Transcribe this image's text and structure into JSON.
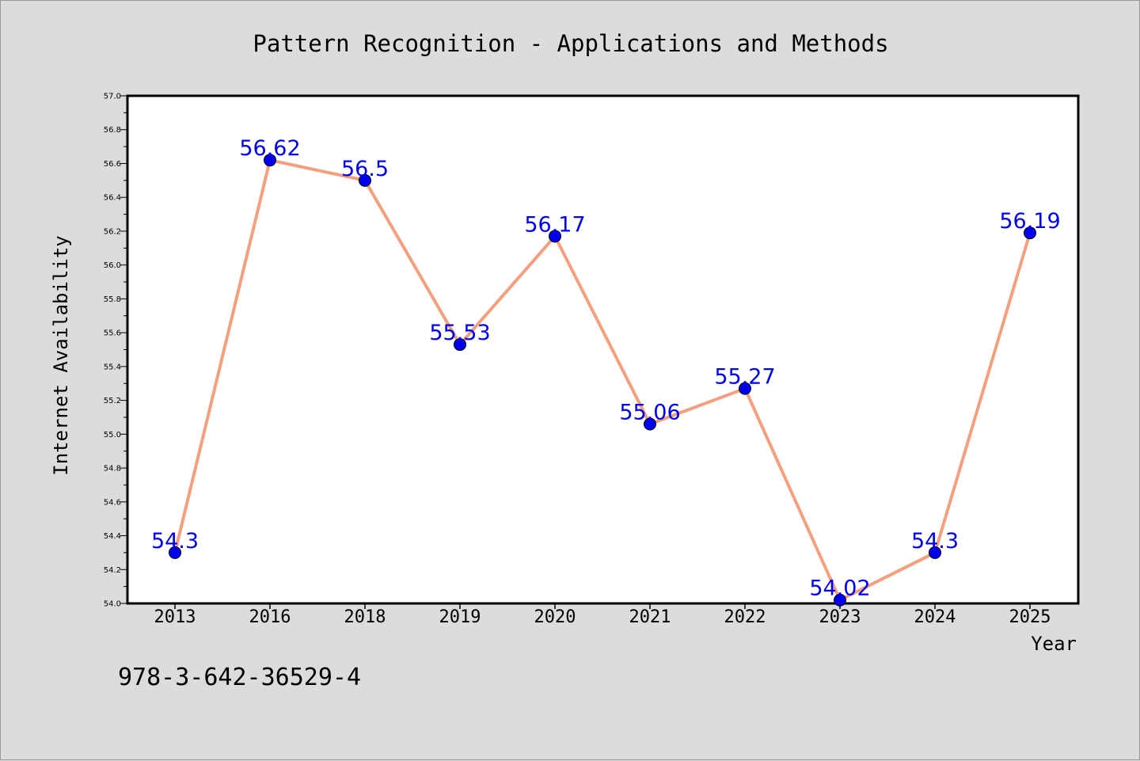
{
  "chart_data": {
    "type": "line",
    "title": "Pattern Recognition - Applications and Methods",
    "xlabel": "Year",
    "ylabel": "Internet Availability",
    "categories": [
      "2013",
      "2016",
      "2018",
      "2019",
      "2020",
      "2021",
      "2022",
      "2023",
      "2024",
      "2025"
    ],
    "series": [
      {
        "values": [
          54.3,
          56.62,
          56.5,
          55.53,
          56.17,
          55.06,
          55.27,
          54.02,
          54.3,
          56.19
        ],
        "labels": [
          "54.3",
          "56.62",
          "56.5",
          "55.53",
          "56.17",
          "55.06",
          "55.27",
          "54.02",
          "54.3",
          "56.19"
        ],
        "line_color": "#f4a07e",
        "marker_color": "#0000ee",
        "label_color": "#0000ee"
      }
    ],
    "ylim": [
      54.0,
      57.0
    ],
    "yticks": [
      "54.0",
      "54.2",
      "54.4",
      "54.6",
      "54.8",
      "55.0",
      "55.2",
      "55.4",
      "55.6",
      "55.8",
      "56.0",
      "56.2",
      "56.4",
      "56.6",
      "56.8",
      "57.0"
    ],
    "grid": false,
    "legend": "none"
  },
  "footer": {
    "isbn": "978-3-642-36529-4"
  },
  "colors": {
    "background": "#dcdcdc",
    "plot_area": "#ffffff",
    "axis": "#000000"
  }
}
